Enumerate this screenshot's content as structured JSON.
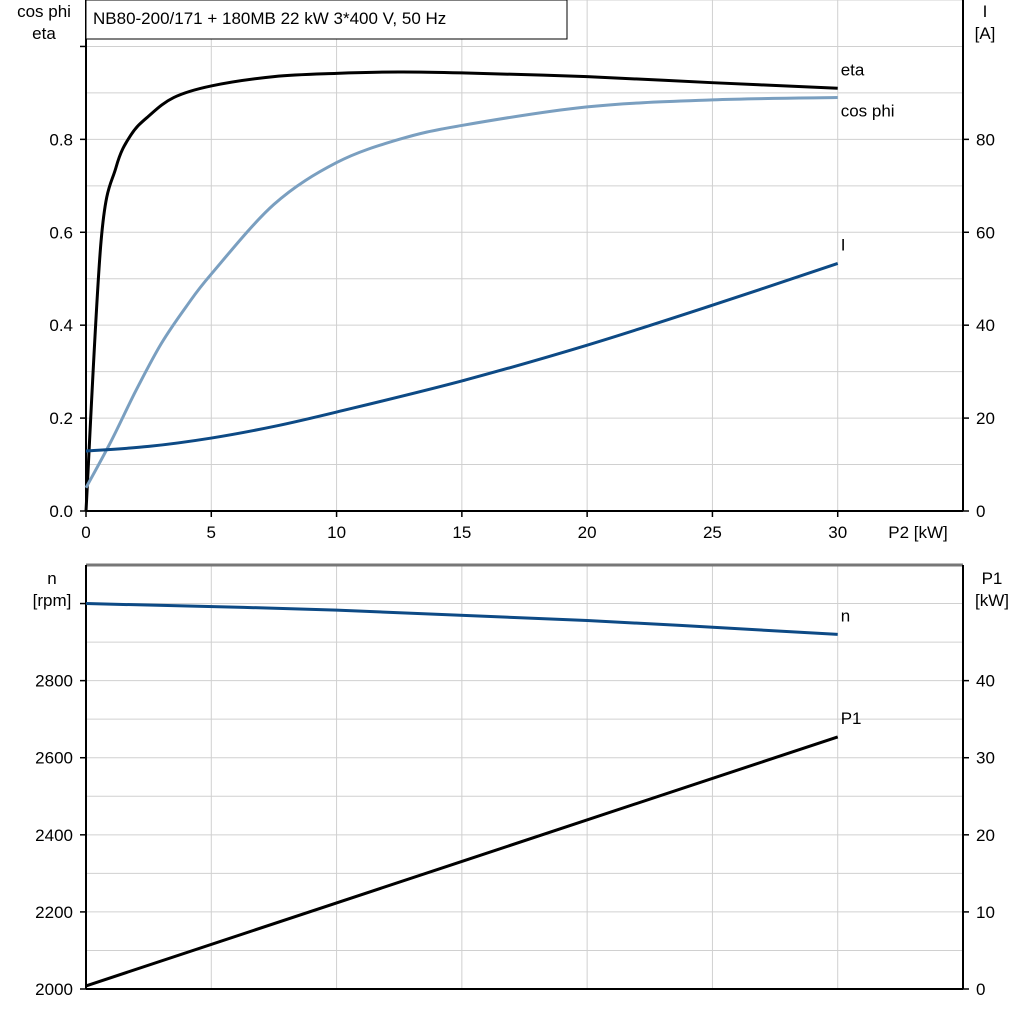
{
  "title": "NB80-200/171 + 180MB   22 kW   3*400 V, 50 Hz",
  "colors": {
    "eta": "#000000",
    "cos_phi": "#7a9fc0",
    "I": "#0d4a85",
    "n": "#0d4a85",
    "P1": "#000000",
    "grid": "#d0d0d0"
  },
  "chart_data": [
    {
      "type": "line",
      "xlabel": "P2 [kW]",
      "xlim": [
        0,
        35
      ],
      "xticks": [
        0,
        5,
        10,
        15,
        20,
        25,
        30
      ],
      "ylabel_left": [
        "cos phi",
        "eta"
      ],
      "ylim_left": [
        0,
        1.1
      ],
      "yticks_left": [
        "0.0",
        "0.2",
        "0.4",
        "0.6",
        "0.8"
      ],
      "ylabel_right": [
        "I",
        "[A]"
      ],
      "ylim_right": [
        0,
        110
      ],
      "yticks_right": [
        "0",
        "20",
        "40",
        "60",
        "80"
      ],
      "grid": true,
      "series": [
        {
          "name": "eta",
          "axis": "left",
          "x": [
            0,
            0.6,
            1.2,
            1.8,
            2.5,
            3.5,
            5,
            7.5,
            10,
            12.5,
            15,
            20,
            25,
            30
          ],
          "y": [
            0,
            0.58,
            0.74,
            0.81,
            0.85,
            0.89,
            0.915,
            0.935,
            0.942,
            0.945,
            0.943,
            0.935,
            0.922,
            0.91
          ]
        },
        {
          "name": "cos phi",
          "axis": "left",
          "x": [
            0,
            1,
            2,
            3,
            4,
            5,
            7.5,
            10,
            12.5,
            15,
            20,
            25,
            30
          ],
          "y": [
            0.05,
            0.15,
            0.26,
            0.36,
            0.44,
            0.51,
            0.66,
            0.75,
            0.8,
            0.83,
            0.87,
            0.885,
            0.89
          ]
        },
        {
          "name": "I",
          "axis": "right",
          "x": [
            0,
            2.5,
            5,
            7.5,
            10,
            15,
            20,
            25,
            30
          ],
          "y": [
            12.9,
            13.9,
            15.7,
            18.2,
            21.3,
            28,
            35.7,
            44.3,
            53.3
          ]
        }
      ]
    },
    {
      "type": "line",
      "xlim": [
        0,
        35
      ],
      "ylabel_left": [
        "n",
        "[rpm]"
      ],
      "ylim_left": [
        2000,
        3100
      ],
      "yticks_left": [
        "2000",
        "2200",
        "2400",
        "2600",
        "2800"
      ],
      "ylabel_right": [
        "P1",
        "[kW]"
      ],
      "ylim_right": [
        0,
        55
      ],
      "yticks_right": [
        "0",
        "10",
        "20",
        "30",
        "40"
      ],
      "grid": true,
      "series": [
        {
          "name": "n",
          "axis": "left",
          "x": [
            0,
            10,
            20,
            30
          ],
          "y": [
            3000,
            2983,
            2956,
            2920
          ]
        },
        {
          "name": "P1",
          "axis": "right",
          "x": [
            0,
            30
          ],
          "y": [
            0.4,
            32.7
          ]
        }
      ]
    }
  ]
}
